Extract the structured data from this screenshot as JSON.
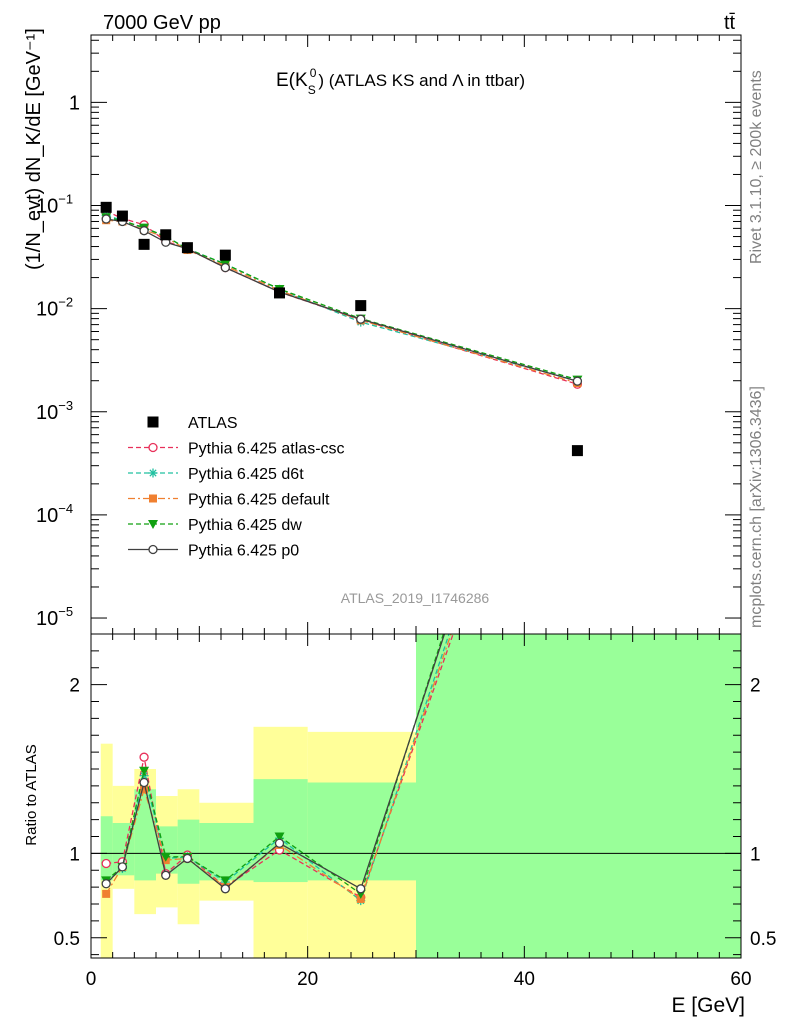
{
  "header": {
    "left": "7000 GeV pp",
    "right": "tt̄"
  },
  "title": {
    "main": "E(K",
    "sub": "S",
    "sup": "0",
    "rest": ") (ATLAS KS and Λ in ttbar)"
  },
  "side": {
    "top": "Rivet 3.1.10, ≥ 200k events",
    "bottom": "mcplots.cern.ch [arXiv:1306.3436]"
  },
  "analysis_id": "ATLAS_2019_I1746286",
  "axes": {
    "ylabel_main": "(1/N_evt) dN_K/dE [GeV⁻¹]",
    "ylabel_ratio": "Ratio to ATLAS",
    "xlabel": "E [GeV]"
  },
  "colors": {
    "atlas": "#000000",
    "atlas_csc": "#e8305a",
    "d6t": "#20c0a0",
    "default": "#f08030",
    "dw": "#10a010",
    "p0": "#404040",
    "band_green": "#99ff99",
    "band_yellow": "#ffff99"
  },
  "chart_data": {
    "type": "scatter",
    "x_scale": "linear",
    "y_scale": "log",
    "xlim": [
      0,
      60
    ],
    "ylim": [
      7e-06,
      4.5
    ],
    "ratio_ylim": [
      0.38,
      2.3
    ],
    "x_ticks": [
      0,
      20,
      40,
      60
    ],
    "y_tick_labels": [
      "1",
      "10^-1",
      "10^-2",
      "10^-3",
      "10^-4",
      "10^-5"
    ],
    "ratio_ticks": [
      0.5,
      1,
      2
    ],
    "x": [
      1.4,
      2.9,
      4.9,
      6.9,
      8.9,
      12.4,
      17.4,
      24.9,
      44.9
    ],
    "series": [
      {
        "name": "ATLAS",
        "marker": "square",
        "values": [
          0.096,
          0.079,
          0.042,
          0.052,
          0.039,
          0.033,
          0.0142,
          0.0107,
          0.00042
        ]
      },
      {
        "name": "Pythia 6.425 atlas-csc",
        "marker": "circle-open",
        "dash": "dashed",
        "values": [
          0.088,
          0.075,
          0.065,
          0.045,
          0.038,
          0.025,
          0.0145,
          0.0078,
          0.00185
        ]
      },
      {
        "name": "Pythia 6.425 d6t",
        "marker": "star",
        "dash": "dashed",
        "values": [
          0.08,
          0.072,
          0.06,
          0.05,
          0.038,
          0.027,
          0.0154,
          0.0074,
          0.002
        ]
      },
      {
        "name": "Pythia 6.425 default",
        "marker": "square-filled",
        "dash": "dashdot",
        "values": [
          0.072,
          0.07,
          0.058,
          0.049,
          0.037,
          0.026,
          0.015,
          0.0077,
          0.0019
        ]
      },
      {
        "name": "Pythia 6.425 dw",
        "marker": "triangle-down",
        "dash": "dashed",
        "values": [
          0.077,
          0.071,
          0.061,
          0.05,
          0.038,
          0.027,
          0.0155,
          0.008,
          0.00205
        ]
      },
      {
        "name": "Pythia 6.425 p0",
        "marker": "circle-open",
        "dash": "solid",
        "values": [
          0.074,
          0.07,
          0.057,
          0.044,
          0.038,
          0.025,
          0.0145,
          0.0079,
          0.00198
        ]
      }
    ],
    "ratio_series": [
      {
        "name": "Pythia 6.425 atlas-csc",
        "values": [
          0.94,
          0.95,
          1.57,
          0.88,
          0.99,
          0.8,
          1.02,
          0.74,
          4.4
        ]
      },
      {
        "name": "Pythia 6.425 d6t",
        "values": [
          0.83,
          0.91,
          1.46,
          0.97,
          0.98,
          0.83,
          1.09,
          0.72,
          4.6
        ]
      },
      {
        "name": "Pythia 6.425 default",
        "values": [
          0.76,
          0.92,
          1.38,
          0.96,
          0.97,
          0.8,
          1.05,
          0.73,
          4.5
        ]
      },
      {
        "name": "Pythia 6.425 dw",
        "values": [
          0.84,
          0.92,
          1.49,
          0.98,
          0.98,
          0.84,
          1.1,
          0.76,
          4.8
        ]
      },
      {
        "name": "Pythia 6.425 p0",
        "values": [
          0.82,
          0.92,
          1.42,
          0.87,
          0.97,
          0.79,
          1.06,
          0.79,
          4.7
        ]
      }
    ],
    "bands": [
      {
        "x0": 0.9,
        "x1": 2.0,
        "green": [
          0.84,
          1.22
        ],
        "yellow": [
          0.36,
          1.65
        ]
      },
      {
        "x0": 2.0,
        "x1": 4.0,
        "green": [
          0.87,
          1.18
        ],
        "yellow": [
          0.79,
          1.4
        ]
      },
      {
        "x0": 4.0,
        "x1": 6.0,
        "green": [
          0.84,
          1.38
        ],
        "yellow": [
          0.64,
          1.5
        ]
      },
      {
        "x0": 6.0,
        "x1": 8.0,
        "green": [
          0.88,
          1.16
        ],
        "yellow": [
          0.68,
          1.34
        ]
      },
      {
        "x0": 8.0,
        "x1": 10.0,
        "green": [
          0.82,
          1.2
        ],
        "yellow": [
          0.58,
          1.38
        ]
      },
      {
        "x0": 10.0,
        "x1": 15.0,
        "green": [
          0.84,
          1.18
        ],
        "yellow": [
          0.72,
          1.3
        ]
      },
      {
        "x0": 15.0,
        "x1": 20.0,
        "green": [
          0.83,
          1.44
        ],
        "yellow": [
          0.38,
          1.75
        ]
      },
      {
        "x0": 20.0,
        "x1": 30.0,
        "green": [
          0.84,
          1.42
        ],
        "yellow": [
          0.38,
          1.72
        ]
      },
      {
        "x0": 30.0,
        "x1": 60.0,
        "green": [
          0.38,
          2.3
        ],
        "yellow": [
          0.38,
          2.3
        ]
      }
    ]
  }
}
